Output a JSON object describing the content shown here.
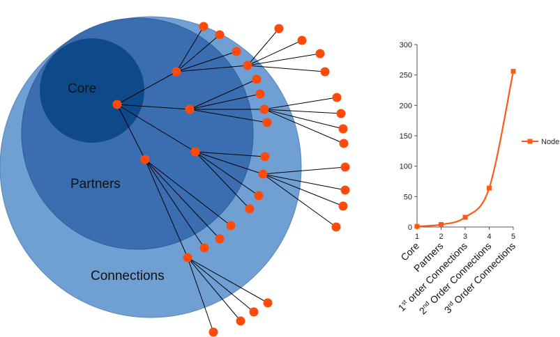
{
  "diagram": {
    "rings": [
      {
        "label": "Connections",
        "color": "#6f9fd3"
      },
      {
        "label": "Partners",
        "color": "#3a6eb0"
      },
      {
        "label": "Core",
        "color": "#0e4a8a"
      }
    ],
    "node_color": "#ff4a0a",
    "edge_color": "#000000"
  },
  "chart_data": {
    "type": "line",
    "x": [
      1,
      2,
      3,
      4,
      5
    ],
    "categories": [
      "Core",
      "Partners",
      "1st order Connections",
      "2nd Order Connections",
      "3rd Order Connections"
    ],
    "category_labels": [
      {
        "text": "Core"
      },
      {
        "text": "Partners"
      },
      {
        "pre": "1",
        "sup": "st",
        "post": " order Connections"
      },
      {
        "pre": "2",
        "sup": "nd",
        "post": " Order Connections"
      },
      {
        "pre": "3",
        "sup": "rd",
        "post": " Order Connections"
      }
    ],
    "series": [
      {
        "name": "Node",
        "values": [
          1,
          4,
          16,
          64,
          256
        ],
        "color": "#ff5a14"
      }
    ],
    "ylim": [
      0,
      300
    ],
    "yticks": [
      0,
      50,
      100,
      150,
      200,
      250,
      300
    ],
    "legend": "right",
    "grid": false
  }
}
